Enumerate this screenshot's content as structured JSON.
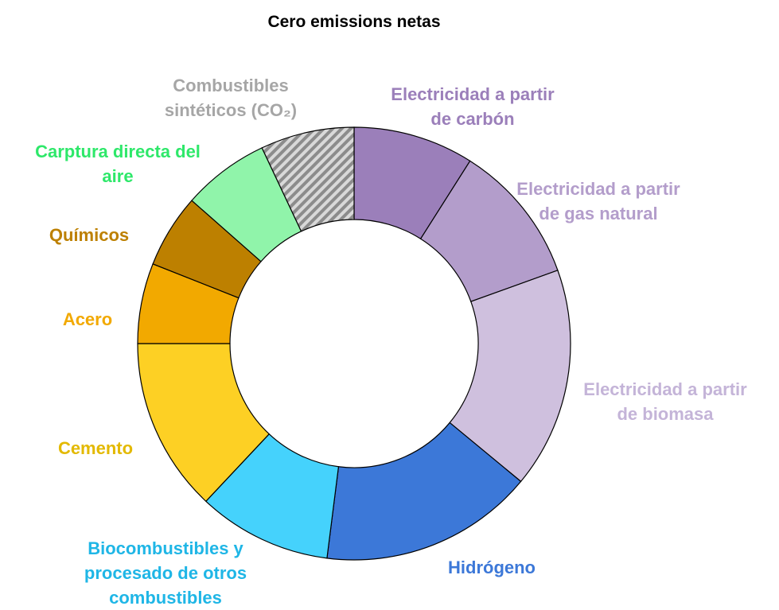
{
  "chart_data": {
    "type": "donut",
    "title": "Cero emissions netas",
    "categories": [
      "Electricidad a partir\nde carbón",
      "Electricidad a partir\nde gas natural",
      "Electricidad a partir\nde biomasa",
      "Hidrógeno",
      "Biocombustibles y\nprocesado de otros\ncombustibles",
      "Cemento",
      "Acero",
      "Químicos",
      "Carptura directa del\naire",
      "Combustibles\nsintéticos (CO₂)"
    ],
    "values": [
      9,
      10.5,
      16.5,
      16,
      10,
      13,
      6,
      5.5,
      6.5,
      7
    ],
    "colors": [
      "#9b7fba",
      "#b39dcb",
      "#cfc0de",
      "#3c78d8",
      "#45d2fc",
      "#fdd024",
      "#f2a900",
      "#bd8000",
      "#90f4aa",
      "#bfbfbf"
    ],
    "label_colors": [
      "#9b7fba",
      "#b39dcb",
      "#c4b4d8",
      "#3c78d8",
      "#1fb6e6",
      "#e3b900",
      "#f2a900",
      "#bd8000",
      "#2ee86a",
      "#a6a6a6"
    ],
    "hatched": [
      false,
      false,
      false,
      false,
      false,
      false,
      false,
      false,
      false,
      true
    ]
  }
}
